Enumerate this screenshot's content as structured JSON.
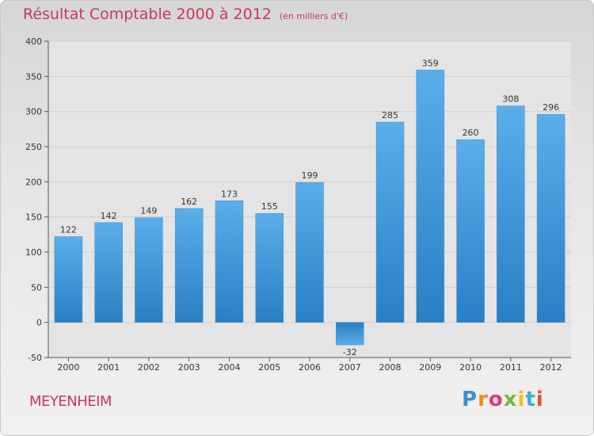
{
  "title": "Résultat Comptable 2000 à 2012",
  "subtitle": "(en milliers d'€)",
  "commune": "MEYENHEIM",
  "logo_text": "Proxiti",
  "colors": {
    "title": "#c8385a",
    "bar_top": "#5aaeea",
    "bar_bottom": "#2a7fc4",
    "grid": "#d0d0d0",
    "axis": "#555555"
  },
  "chart_data": {
    "type": "bar",
    "title": "Résultat Comptable 2000 à 2012",
    "categories": [
      "2000",
      "2001",
      "2002",
      "2003",
      "2004",
      "2005",
      "2006",
      "2007",
      "2008",
      "2009",
      "2010",
      "2011",
      "2012"
    ],
    "values": [
      122,
      142,
      149,
      162,
      173,
      155,
      199,
      -32,
      285,
      359,
      260,
      308,
      296
    ],
    "ylim": [
      -50,
      400
    ],
    "yticks": [
      -50,
      0,
      50,
      100,
      150,
      200,
      250,
      300,
      350,
      400
    ],
    "grid": true
  }
}
